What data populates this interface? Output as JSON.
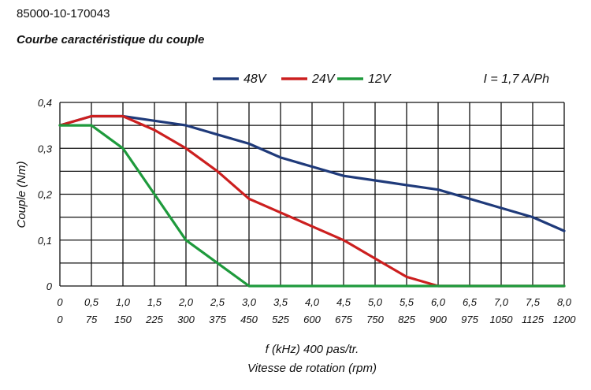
{
  "header": {
    "product_code": "85000-10-170043",
    "title": "Courbe caractéristique du couple"
  },
  "chart_data": {
    "type": "line",
    "title": "Courbe caractéristique du couple",
    "annotation": "I = 1,7 A/Ph",
    "xlabel": "f (kHz) 400 pas/tr.",
    "xlabel2": "Vitesse de rotation (rpm)",
    "ylabel": "Couple (Nm)",
    "xlim": [
      0,
      8
    ],
    "ylim": [
      0,
      0.4
    ],
    "grid": true,
    "legend_position": "top",
    "x_ticks": [
      "0",
      "0,5",
      "1,0",
      "1,5",
      "2,0",
      "2,5",
      "3,0",
      "3,5",
      "4,0",
      "4,5",
      "5,0",
      "5,5",
      "6,0",
      "6,5",
      "7,0",
      "7,5",
      "8,0"
    ],
    "x_ticks_rpm": [
      "0",
      "75",
      "150",
      "225",
      "300",
      "375",
      "450",
      "525",
      "600",
      "675",
      "750",
      "825",
      "900",
      "975",
      "1050",
      "1125",
      "1200"
    ],
    "y_ticks": [
      "0",
      "0,1",
      "0,2",
      "0,3",
      "0,4"
    ],
    "y_tick_values": [
      0,
      0.1,
      0.2,
      0.3,
      0.4
    ],
    "series": [
      {
        "name": "48V",
        "color": "#1f3a7a",
        "x": [
          0,
          0.5,
          1.0,
          1.5,
          2.0,
          2.5,
          3.0,
          3.5,
          4.0,
          4.5,
          5.0,
          5.5,
          6.0,
          6.5,
          7.0,
          7.5,
          8.0
        ],
        "y": [
          0.35,
          0.37,
          0.37,
          0.36,
          0.35,
          0.33,
          0.31,
          0.28,
          0.26,
          0.24,
          0.23,
          0.22,
          0.21,
          0.19,
          0.17,
          0.15,
          0.12
        ]
      },
      {
        "name": "24V",
        "color": "#cc1f1f",
        "x": [
          0,
          0.5,
          1.0,
          1.5,
          2.0,
          2.5,
          3.0,
          3.5,
          4.0,
          4.5,
          5.0,
          5.5,
          6.0,
          8.0
        ],
        "y": [
          0.35,
          0.37,
          0.37,
          0.34,
          0.3,
          0.25,
          0.19,
          0.16,
          0.13,
          0.1,
          0.06,
          0.02,
          0.0,
          0.0
        ]
      },
      {
        "name": "12V",
        "color": "#1e9a3c",
        "x": [
          0,
          0.5,
          1.0,
          1.5,
          2.0,
          2.5,
          3.0,
          8.0
        ],
        "y": [
          0.35,
          0.35,
          0.3,
          0.2,
          0.1,
          0.05,
          0.0,
          0.0
        ]
      }
    ]
  }
}
